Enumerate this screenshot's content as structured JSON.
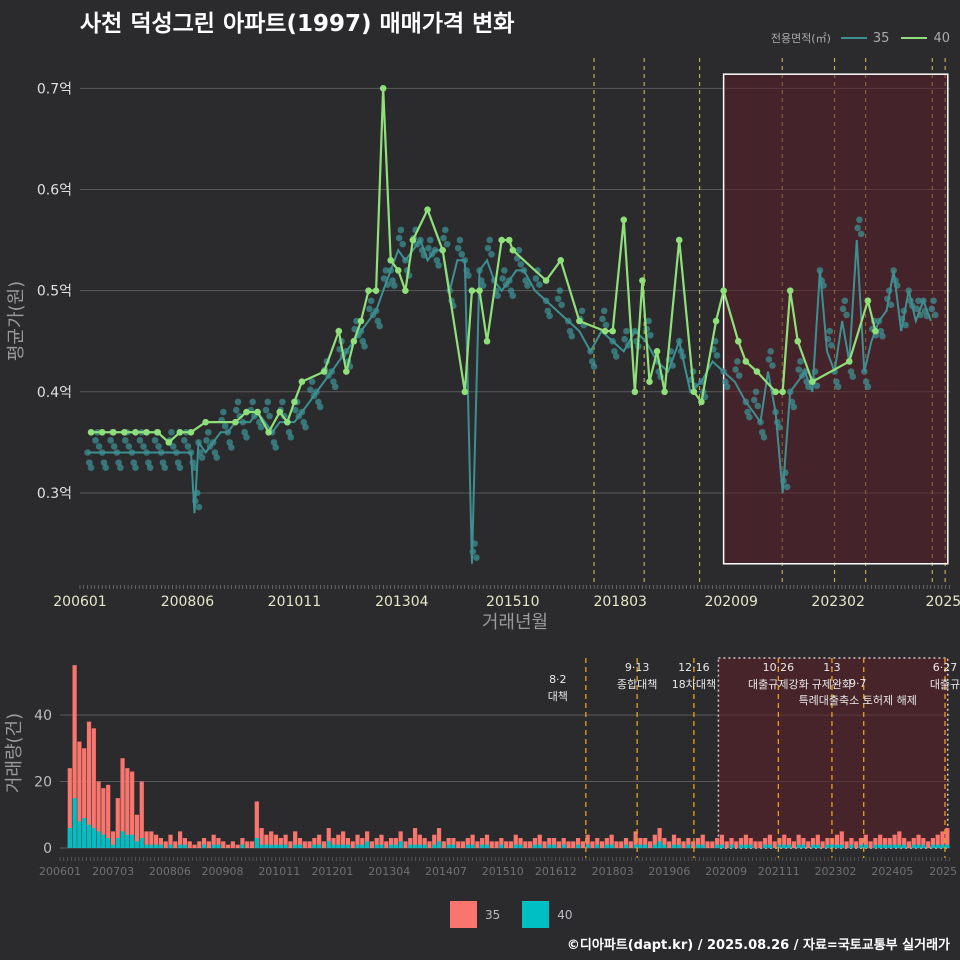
{
  "title": "사천 덕성그린 아파트(1997) 매매가격 변화",
  "legend": {
    "title": "전용면적(㎡)",
    "items": [
      {
        "label": "35",
        "color": "#3e8f92"
      },
      {
        "label": "40",
        "color": "#8fe07a"
      }
    ]
  },
  "bar_legend": [
    {
      "label": "35",
      "color": "#f8766d"
    },
    {
      "label": "40",
      "color": "#00bfc4"
    }
  ],
  "footer": "©디아파트(dapt.kr) / 2025.08.26 / 자료=국토교통부 실거래가",
  "chart_data": [
    {
      "type": "line",
      "title": "사천 덕성그린 아파트(1997) 매매가격 변화",
      "xlabel": "거래년월",
      "ylabel": "평균가(원)",
      "x_ticks": [
        "200601",
        "200806",
        "201011",
        "201304",
        "201510",
        "201803",
        "202009",
        "202302",
        "2025"
      ],
      "y_ticks": [
        "0.3억",
        "0.4억",
        "0.5억",
        "0.6억",
        "0.7억"
      ],
      "ylim": [
        0.21,
        0.73
      ],
      "grid": true,
      "legend_position": "top-right",
      "series": [
        {
          "name": "35",
          "x": [
            2006.17,
            2006.33,
            2006.5,
            2006.67,
            2006.83,
            2007.0,
            2007.17,
            2007.33,
            2007.5,
            2007.67,
            2007.83,
            2008.0,
            2008.17,
            2008.33,
            2008.5,
            2008.58,
            2008.67,
            2008.83,
            2009.0,
            2009.17,
            2009.33,
            2009.5,
            2009.67,
            2009.83,
            2010.0,
            2010.17,
            2010.33,
            2010.5,
            2010.67,
            2010.83,
            2011.0,
            2011.17,
            2011.33,
            2011.5,
            2011.67,
            2011.83,
            2012.0,
            2012.17,
            2012.33,
            2012.5,
            2012.67,
            2012.83,
            2013.0,
            2013.17,
            2013.33,
            2013.5,
            2013.67,
            2013.83,
            2014.0,
            2014.17,
            2014.33,
            2014.5,
            2014.67,
            2014.83,
            2015.0,
            2015.17,
            2015.33,
            2015.5,
            2015.67,
            2015.83,
            2016.0,
            2016.25,
            2016.5,
            2016.75,
            2017.0,
            2017.25,
            2017.5,
            2017.75,
            2018.0,
            2018.25,
            2018.5,
            2018.75,
            2019.0,
            2019.25,
            2019.5,
            2019.75,
            2020.0,
            2020.25,
            2020.5,
            2020.75,
            2021.0,
            2021.17,
            2021.33,
            2021.5,
            2021.67,
            2021.83,
            2022.0,
            2022.17,
            2022.33,
            2022.5,
            2022.67,
            2022.83,
            2023.0,
            2023.17,
            2023.33,
            2023.5,
            2023.67,
            2023.83,
            2024.0,
            2024.17,
            2024.33,
            2024.5,
            2024.67,
            2024.83,
            2025.0,
            2025.17
          ],
          "values": [
            0.34,
            0.34,
            0.34,
            0.34,
            0.34,
            0.34,
            0.34,
            0.34,
            0.34,
            0.34,
            0.34,
            0.34,
            0.34,
            0.34,
            0.34,
            0.28,
            0.35,
            0.34,
            0.35,
            0.36,
            0.36,
            0.37,
            0.37,
            0.37,
            0.38,
            0.37,
            0.36,
            0.37,
            0.37,
            0.37,
            0.38,
            0.39,
            0.4,
            0.41,
            0.42,
            0.43,
            0.44,
            0.45,
            0.46,
            0.47,
            0.48,
            0.5,
            0.52,
            0.54,
            0.53,
            0.54,
            0.55,
            0.53,
            0.54,
            0.54,
            0.5,
            0.53,
            0.53,
            0.23,
            0.52,
            0.53,
            0.51,
            0.5,
            0.51,
            0.52,
            0.52,
            0.5,
            0.49,
            0.48,
            0.47,
            0.46,
            0.44,
            0.46,
            0.45,
            0.44,
            0.46,
            0.45,
            0.43,
            0.42,
            0.45,
            0.4,
            0.41,
            0.43,
            0.42,
            0.41,
            0.39,
            0.38,
            0.37,
            0.42,
            0.38,
            0.3,
            0.4,
            0.41,
            0.42,
            0.4,
            0.52,
            0.44,
            0.42,
            0.47,
            0.43,
            0.55,
            0.42,
            0.45,
            0.47,
            0.48,
            0.52,
            0.46,
            0.5,
            0.47,
            0.49,
            0.47
          ]
        },
        {
          "name": "40",
          "x": [
            2006.25,
            2006.5,
            2006.75,
            2007.0,
            2007.25,
            2007.5,
            2007.75,
            2008.0,
            2008.25,
            2008.5,
            2008.83,
            2009.5,
            2009.75,
            2010.0,
            2010.25,
            2010.5,
            2010.67,
            2010.83,
            2011.0,
            2011.5,
            2011.83,
            2012.0,
            2012.17,
            2012.33,
            2012.5,
            2012.67,
            2012.83,
            2013.0,
            2013.17,
            2013.33,
            2013.5,
            2013.83,
            2014.17,
            2014.67,
            2014.83,
            2015.0,
            2015.17,
            2015.5,
            2015.67,
            2015.75,
            2016.5,
            2016.83,
            2017.25,
            2017.83,
            2018.0,
            2018.25,
            2018.5,
            2018.67,
            2018.83,
            2019.0,
            2019.17,
            2019.5,
            2019.83,
            2020.0,
            2020.33,
            2020.5,
            2020.83,
            2021.0,
            2021.25,
            2021.67,
            2021.83,
            2022.0,
            2022.17,
            2022.5,
            2023.33,
            2023.75,
            2023.92
          ],
          "values": [
            0.36,
            0.36,
            0.36,
            0.36,
            0.36,
            0.36,
            0.36,
            0.35,
            0.36,
            0.36,
            0.37,
            0.37,
            0.38,
            0.38,
            0.36,
            0.38,
            0.37,
            0.39,
            0.41,
            0.42,
            0.46,
            0.42,
            0.45,
            0.47,
            0.5,
            0.5,
            0.7,
            0.53,
            0.52,
            0.5,
            0.55,
            0.58,
            0.54,
            0.4,
            0.5,
            0.5,
            0.45,
            0.55,
            0.55,
            0.54,
            0.51,
            0.53,
            0.47,
            0.46,
            0.46,
            0.57,
            0.4,
            0.51,
            0.41,
            0.44,
            0.4,
            0.55,
            0.4,
            0.39,
            0.47,
            0.5,
            0.45,
            0.43,
            0.42,
            0.4,
            0.4,
            0.5,
            0.45,
            0.41,
            0.43,
            0.49,
            0.46
          ]
        }
      ]
    },
    {
      "type": "bar",
      "ylabel": "거래량(건)",
      "x_ticks": [
        "200601",
        "200703",
        "200806",
        "200908",
        "201011",
        "201201",
        "201304",
        "201407",
        "201510",
        "201612",
        "201803",
        "201906",
        "202009",
        "202111",
        "202302",
        "202405",
        "2025"
      ],
      "y_ticks": [
        "0",
        "20",
        "40"
      ],
      "ylim": [
        0,
        56
      ],
      "grid": true,
      "policy_events": [
        {
          "label": "8·2 대책",
          "date": "2017.58"
        },
        {
          "label": "9·13 종합대책",
          "date": "2018.71"
        },
        {
          "label": "12·16 18차대책",
          "date": "2019.96"
        },
        {
          "label": "10·26 대출규제강화",
          "date": "2021.82"
        },
        {
          "label": "1·3 규제완화",
          "date": "2023.0"
        },
        {
          "label": "9·7 특례대출축소 토허제 해제",
          "date": "2023.7"
        },
        {
          "label": "6·27 대출규",
          "date": "2025.49"
        }
      ],
      "series": [
        {
          "name": "35",
          "values": [
            24,
            55,
            32,
            30,
            38,
            36,
            20,
            18,
            19,
            5,
            15,
            27,
            24,
            23,
            10,
            20,
            5,
            5,
            4,
            3,
            2,
            4,
            2,
            5,
            3,
            2,
            1,
            2,
            3,
            2,
            4,
            3,
            2,
            1,
            2,
            1,
            3,
            2,
            2,
            14,
            6,
            4,
            5,
            4,
            3,
            4,
            2,
            5,
            3,
            2,
            2,
            3,
            4,
            2,
            6,
            3,
            4,
            5,
            3,
            2,
            4,
            3,
            5,
            2,
            3,
            4,
            2,
            3,
            3,
            5,
            2,
            3,
            6,
            4,
            3,
            2,
            4,
            6,
            2,
            3,
            3,
            2,
            2,
            3,
            4,
            2,
            3,
            4,
            2,
            2,
            3,
            2,
            2,
            4,
            3,
            2,
            2,
            3,
            4,
            2,
            3,
            3,
            2,
            3,
            2,
            2,
            3,
            2,
            4,
            2,
            3,
            2,
            3,
            4,
            2,
            2,
            3,
            2,
            5,
            3,
            3,
            2,
            4,
            6,
            3,
            2,
            4,
            3,
            2,
            3,
            2,
            3,
            4,
            2,
            2,
            3,
            4,
            2,
            3,
            2,
            3,
            4,
            3,
            2,
            2,
            3,
            4,
            2,
            3,
            4,
            3,
            2,
            4,
            3,
            2,
            3,
            4,
            2,
            3,
            3,
            4,
            5,
            2,
            3,
            2,
            3,
            4,
            2,
            3,
            4,
            3,
            3,
            4,
            5,
            3,
            2,
            3,
            4,
            3,
            2,
            3,
            4,
            5,
            6
          ]
        },
        {
          "name": "40",
          "values": [
            6,
            15,
            8,
            9,
            7,
            6,
            5,
            4,
            3,
            1,
            3,
            5,
            4,
            4,
            2,
            3,
            1,
            1,
            1,
            1,
            0,
            1,
            0,
            1,
            1,
            0,
            0,
            0,
            1,
            0,
            1,
            1,
            0,
            0,
            0,
            0,
            1,
            0,
            0,
            3,
            1,
            1,
            1,
            1,
            1,
            1,
            0,
            1,
            1,
            0,
            0,
            1,
            1,
            0,
            2,
            1,
            1,
            1,
            1,
            0,
            1,
            1,
            2,
            0,
            1,
            1,
            0,
            1,
            1,
            2,
            0,
            1,
            1,
            1,
            1,
            0,
            1,
            2,
            0,
            1,
            1,
            0,
            0,
            1,
            1,
            0,
            1,
            1,
            0,
            0,
            1,
            0,
            0,
            1,
            1,
            0,
            0,
            1,
            1,
            0,
            1,
            1,
            0,
            1,
            0,
            0,
            1,
            0,
            1,
            0,
            1,
            0,
            1,
            1,
            0,
            0,
            1,
            0,
            1,
            1,
            1,
            0,
            1,
            2,
            1,
            0,
            1,
            1,
            0,
            1,
            0,
            1,
            1,
            0,
            0,
            1,
            1,
            0,
            1,
            0,
            1,
            1,
            1,
            0,
            0,
            1,
            1,
            0,
            1,
            1,
            1,
            0,
            1,
            1,
            0,
            1,
            1,
            0,
            1,
            1,
            1,
            1,
            0,
            1,
            0,
            1,
            1,
            0,
            1,
            1,
            1,
            1,
            1,
            1,
            1,
            0,
            1,
            1,
            1,
            0,
            1,
            1,
            1,
            1
          ]
        }
      ]
    }
  ]
}
